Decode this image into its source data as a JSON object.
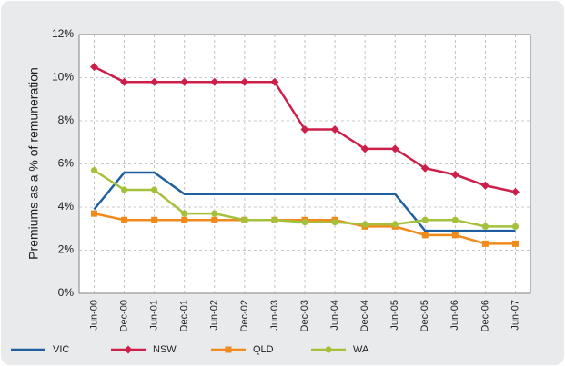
{
  "chart_data": {
    "type": "line",
    "y_label": "Premiums as a % of remuneration",
    "categories": [
      "Jun-00",
      "Dec-00",
      "Jun-01",
      "Dec-01",
      "Jun-02",
      "Dec-02",
      "Jun-03",
      "Dec-03",
      "Jun-04",
      "Dec-04",
      "Jun-05",
      "Dec-05",
      "Jun-06",
      "Dec-06",
      "Jun-07"
    ],
    "series": [
      {
        "name": "VIC",
        "color": "#1f5fa0",
        "marker": "none",
        "values": [
          3.9,
          5.6,
          5.6,
          4.6,
          4.6,
          4.6,
          4.6,
          4.6,
          4.6,
          4.6,
          4.6,
          2.9,
          2.9,
          2.9,
          2.9
        ]
      },
      {
        "name": "NSW",
        "color": "#cc1f4a",
        "marker": "diamond",
        "values": [
          10.5,
          9.8,
          9.8,
          9.8,
          9.8,
          9.8,
          9.8,
          7.6,
          7.6,
          6.7,
          6.7,
          5.8,
          5.5,
          5.0,
          4.7
        ]
      },
      {
        "name": "QLD",
        "color": "#f08a1c",
        "marker": "square",
        "values": [
          3.7,
          3.4,
          3.4,
          3.4,
          3.4,
          3.4,
          3.4,
          3.4,
          3.4,
          3.1,
          3.1,
          2.7,
          2.7,
          2.3,
          2.3
        ]
      },
      {
        "name": "WA",
        "color": "#a5c03a",
        "marker": "circle",
        "values": [
          5.7,
          4.8,
          4.8,
          3.7,
          3.7,
          3.4,
          3.4,
          3.3,
          3.3,
          3.2,
          3.2,
          3.4,
          3.4,
          3.1,
          3.1
        ]
      }
    ],
    "ylim": [
      0,
      12
    ],
    "yticks": [
      {
        "value": 0,
        "label": "0%"
      },
      {
        "value": 2,
        "label": "2%"
      },
      {
        "value": 4,
        "label": "4%"
      },
      {
        "value": 6,
        "label": "6%"
      },
      {
        "value": 8,
        "label": "8%"
      },
      {
        "value": 10,
        "label": "10%"
      },
      {
        "value": 12,
        "label": "12%"
      }
    ],
    "grid": true,
    "legend": "bottom"
  }
}
